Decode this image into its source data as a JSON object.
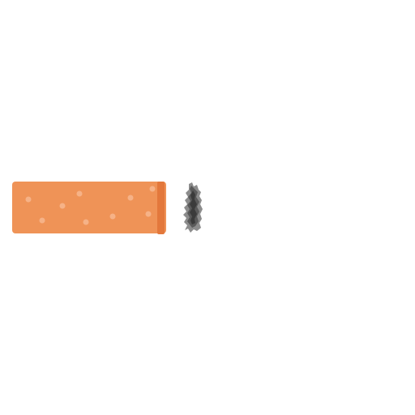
{
  "illustration": {
    "icon": "cigarette-butt-icon",
    "colors": {
      "filter": "#EF9357",
      "filter_edge": "#E3783C",
      "speckle": "#F6B287",
      "ash_dark": "#3B3B3B",
      "ash_mid": "#5A5A5A",
      "ash_light": "#8C8C8C",
      "background": "#FFFFFF"
    }
  }
}
